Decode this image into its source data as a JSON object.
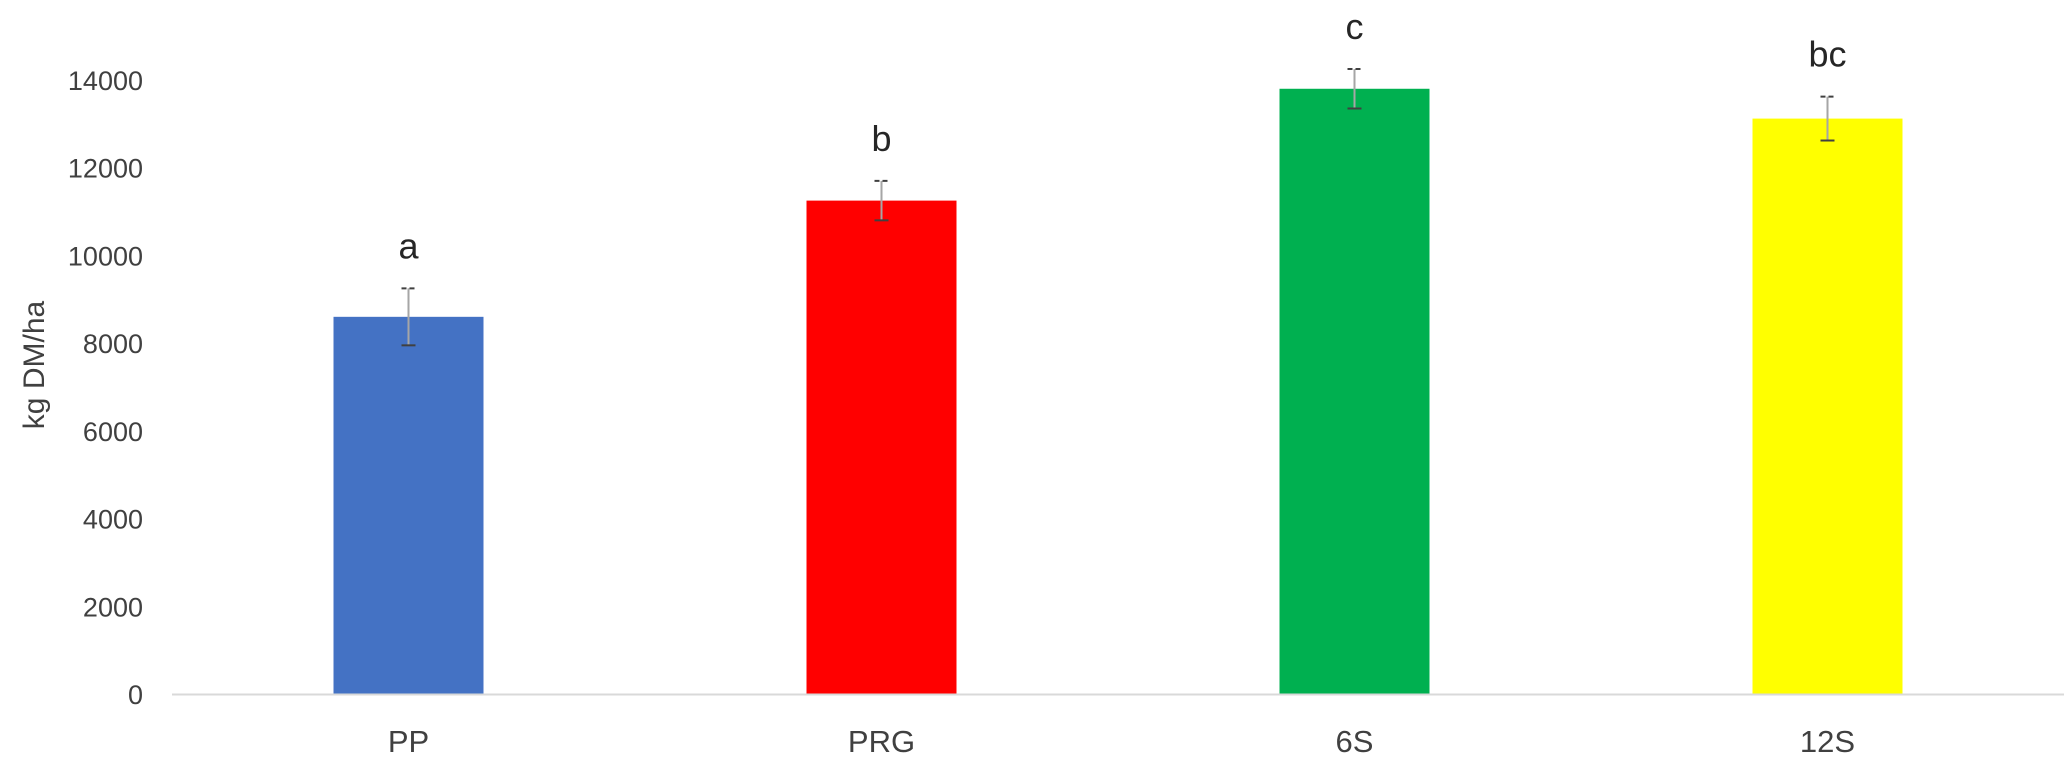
{
  "chart_data": {
    "type": "bar",
    "title": "",
    "xlabel": "",
    "ylabel": "kg DM/ha",
    "ylim": [
      0,
      14000
    ],
    "y_ticks": [
      0,
      2000,
      4000,
      6000,
      8000,
      10000,
      12000,
      14000
    ],
    "grid": false,
    "legend": "none",
    "categories": [
      "PP",
      "PRG",
      "6S",
      "12S"
    ],
    "values": [
      8600,
      11250,
      13800,
      13120
    ],
    "errors": [
      650,
      450,
      450,
      500
    ],
    "significance_letters": [
      "a",
      "b",
      "c",
      "bc"
    ],
    "colors": [
      "#4472C4",
      "#FF0000",
      "#00B050",
      "#FFFF00"
    ],
    "axis_color": "#D9D9D9",
    "text_color": "#404040",
    "error_bar_color": "#404040"
  }
}
